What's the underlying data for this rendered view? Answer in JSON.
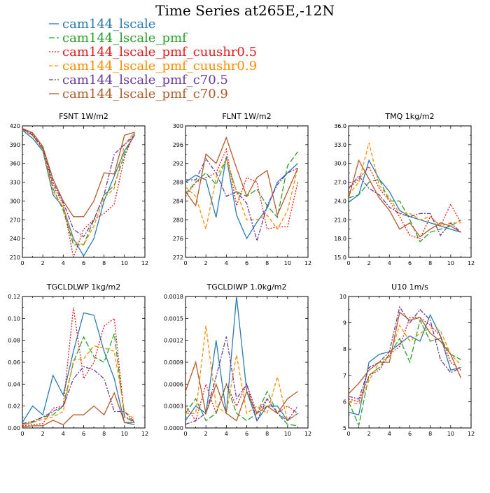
{
  "figure": {
    "title": "Time Series at265E,-12N"
  },
  "legend": [
    {
      "name": "cam144_lscale",
      "color": "#2a7ab5",
      "dash": "solid"
    },
    {
      "name": "cam144_lscale_pmf",
      "color": "#2ca02c",
      "dash": "longdash"
    },
    {
      "name": "cam144_lscale_pmf_cuushr0.5",
      "color": "#e31a1c",
      "dash": "dot"
    },
    {
      "name": "cam144_lscale_pmf_cuushr0.9",
      "color": "#ff8c00",
      "dash": "dash"
    },
    {
      "name": "cam144_lscale_pmf_c70.5",
      "color": "#6a3d9a",
      "dash": "dashdot"
    },
    {
      "name": "cam144_lscale_pmf_c70.9",
      "color": "#b35a2b",
      "dash": "solid"
    }
  ],
  "chart_data": [
    {
      "type": "line",
      "title": "FSNT   1W/m2",
      "xlim": [
        0,
        12
      ],
      "ylim": [
        210,
        420
      ],
      "xticks": [
        "0",
        "2",
        "4",
        "6",
        "8",
        "10",
        "12"
      ],
      "yticks": [
        "210",
        "240",
        "270",
        "300",
        "330",
        "360",
        "390",
        "420"
      ],
      "x": [
        0,
        1,
        2,
        3,
        4,
        5,
        6,
        7,
        8,
        9,
        10,
        11
      ],
      "series": [
        {
          "name": "cam144_lscale",
          "values": [
            413,
            400,
            380,
            310,
            290,
            240,
            212,
            240,
            300,
            340,
            380,
            405
          ]
        },
        {
          "name": "cam144_lscale_pmf",
          "values": [
            415,
            405,
            383,
            320,
            285,
            230,
            230,
            270,
            310,
            325,
            375,
            408
          ]
        },
        {
          "name": "cam144_lscale_pmf_cuushr0.5",
          "values": [
            416,
            407,
            385,
            325,
            295,
            210,
            255,
            270,
            280,
            295,
            370,
            410
          ]
        },
        {
          "name": "cam144_lscale_pmf_cuushr0.9",
          "values": [
            414,
            404,
            382,
            315,
            290,
            235,
            230,
            260,
            305,
            320,
            390,
            410
          ]
        },
        {
          "name": "cam144_lscale_pmf_c70.5",
          "values": [
            415,
            406,
            384,
            330,
            298,
            255,
            243,
            270,
            310,
            375,
            390,
            405
          ]
        },
        {
          "name": "cam144_lscale_pmf_c70.9",
          "values": [
            416,
            409,
            387,
            335,
            300,
            275,
            275,
            300,
            345,
            343,
            405,
            410
          ]
        }
      ]
    },
    {
      "type": "line",
      "title": "FLNT   1W/m2",
      "xlim": [
        0,
        12
      ],
      "ylim": [
        272,
        300
      ],
      "xticks": [
        "0",
        "2",
        "4",
        "6",
        "8",
        "10",
        "12"
      ],
      "yticks": [
        "272",
        "276",
        "280",
        "284",
        "288",
        "292",
        "296",
        "300"
      ],
      "x": [
        0,
        1,
        2,
        3,
        4,
        5,
        6,
        7,
        8,
        9,
        10,
        11
      ],
      "series": [
        {
          "name": "cam144_lscale",
          "values": [
            288,
            289.5,
            288.5,
            280.5,
            293.5,
            281,
            276,
            279.5,
            282.5,
            288,
            290,
            292
          ]
        },
        {
          "name": "cam144_lscale_pmf",
          "values": [
            285.5,
            288,
            290,
            287.5,
            293,
            286,
            285,
            286.5,
            283,
            280.5,
            291.5,
            294.5
          ]
        },
        {
          "name": "cam144_lscale_pmf_cuushr0.5",
          "values": [
            285,
            288,
            289,
            290,
            295,
            283,
            289,
            288,
            278,
            278.5,
            278.5,
            288
          ]
        },
        {
          "name": "cam144_lscale_pmf_cuushr0.9",
          "values": [
            287,
            285,
            278,
            289,
            293,
            286,
            280,
            280,
            281,
            278,
            282,
            291
          ]
        },
        {
          "name": "cam144_lscale_pmf_c70.5",
          "values": [
            288.5,
            288.5,
            293,
            290,
            285,
            286,
            283.5,
            275.5,
            283,
            287.5,
            290,
            291
          ]
        },
        {
          "name": "cam144_lscale_pmf_c70.9",
          "values": [
            286,
            283,
            294,
            292,
            297.5,
            291,
            285,
            289,
            290.5,
            281,
            286,
            291
          ]
        }
      ]
    },
    {
      "type": "line",
      "title": "TMQ   1kg/m2",
      "xlim": [
        0,
        12
      ],
      "ylim": [
        15,
        36
      ],
      "xticks": [
        "0",
        "2",
        "4",
        "6",
        "8",
        "10",
        "12"
      ],
      "yticks": [
        "15.0",
        "18.0",
        "21.0",
        "24.0",
        "27.0",
        "30.0",
        "33.0",
        "36.0"
      ],
      "x": [
        0,
        1,
        2,
        3,
        4,
        5,
        6,
        7,
        8,
        9,
        10,
        11
      ],
      "series": [
        {
          "name": "cam144_lscale",
          "values": [
            23.8,
            25,
            30.5,
            27.5,
            25.5,
            22.5,
            21.5,
            21,
            20.5,
            20,
            19.5,
            19
          ]
        },
        {
          "name": "cam144_lscale_pmf",
          "values": [
            24.5,
            25,
            27,
            27.5,
            24,
            24,
            21,
            17.5,
            19,
            19.5,
            20,
            21
          ]
        },
        {
          "name": "cam144_lscale_pmf_cuushr0.5",
          "values": [
            26,
            27.5,
            29.5,
            26,
            24,
            21.5,
            18.5,
            18,
            21.5,
            20,
            23.5,
            20.5
          ]
        },
        {
          "name": "cam144_lscale_pmf_cuushr0.9",
          "values": [
            25,
            27,
            33.3,
            26.5,
            24.5,
            22,
            22,
            21,
            21.5,
            20,
            20.5,
            20.5
          ]
        },
        {
          "name": "cam144_lscale_pmf_c70.5",
          "values": [
            26,
            28,
            26,
            25,
            23,
            22,
            21.5,
            22,
            22,
            18.5,
            20.5,
            19
          ]
        },
        {
          "name": "cam144_lscale_pmf_c70.9",
          "values": [
            24.5,
            30.5,
            27.5,
            24.5,
            22.5,
            19.5,
            20.5,
            18.3,
            19.5,
            20.5,
            20,
            19
          ]
        }
      ]
    },
    {
      "type": "line",
      "title": "TGCLDLWP   1kg/m2",
      "xlim": [
        0,
        12
      ],
      "ylim": [
        0,
        0.12
      ],
      "xticks": [
        "0",
        "2",
        "4",
        "6",
        "8",
        "10",
        "12"
      ],
      "yticks": [
        "0.00",
        "0.02",
        "0.04",
        "0.06",
        "0.08",
        "0.10",
        "0.12"
      ],
      "x": [
        0,
        1,
        2,
        3,
        4,
        5,
        6,
        7,
        8,
        9,
        10,
        11
      ],
      "series": [
        {
          "name": "cam144_lscale",
          "values": [
            0.005,
            0.02,
            0.012,
            0.048,
            0.03,
            0.07,
            0.105,
            0.103,
            0.07,
            0.045,
            0.005,
            0.003
          ]
        },
        {
          "name": "cam144_lscale_pmf",
          "values": [
            0.003,
            0.005,
            0.01,
            0.012,
            0.02,
            0.06,
            0.083,
            0.065,
            0.06,
            0.086,
            0.01,
            0.005
          ]
        },
        {
          "name": "cam144_lscale_pmf_cuushr0.5",
          "values": [
            0.002,
            0.003,
            0.004,
            0.018,
            0.02,
            0.11,
            0.045,
            0.06,
            0.093,
            0.1,
            0.01,
            0.007
          ]
        },
        {
          "name": "cam144_lscale_pmf_cuushr0.9",
          "values": [
            0.003,
            0.005,
            0.008,
            0.01,
            0.015,
            0.062,
            0.063,
            0.075,
            0.073,
            0.07,
            0.015,
            0.008
          ]
        },
        {
          "name": "cam144_lscale_pmf_c70.5",
          "values": [
            0.004,
            0.006,
            0.01,
            0.015,
            0.02,
            0.045,
            0.056,
            0.053,
            0.045,
            0.015,
            0.015,
            0.005
          ]
        },
        {
          "name": "cam144_lscale_pmf_c70.9",
          "values": [
            0.001,
            0.002,
            0.002,
            0.007,
            0.003,
            0.012,
            0.012,
            0.02,
            0.012,
            0.032,
            0.005,
            0.005
          ]
        }
      ]
    },
    {
      "type": "line",
      "title": "TGCLDIWP   1.0kg/m2",
      "xlim": [
        0,
        12
      ],
      "ylim": [
        0,
        0.0018
      ],
      "xticks": [
        "0",
        "2",
        "4",
        "6",
        "8",
        "10",
        "12"
      ],
      "yticks": [
        "0.0000",
        "0.0003",
        "0.0006",
        "0.0009",
        "0.0012",
        "0.0015",
        "0.0018"
      ],
      "x": [
        0,
        1,
        2,
        3,
        4,
        5,
        6,
        7,
        8,
        9,
        10,
        11
      ],
      "series": [
        {
          "name": "cam144_lscale",
          "values": [
            0.0001,
            0.0003,
            0.0002,
            0.0012,
            0.0002,
            0.0018,
            0.0005,
            0.0001,
            0.0003,
            0.0003,
            0.0001,
            0.0002
          ]
        },
        {
          "name": "cam144_lscale_pmf",
          "values": [
            0.0002,
            0.0004,
            0.0001,
            0.0002,
            0.0006,
            0.0002,
            0.0001,
            0.0002,
            0.0005,
            0.0002,
            5e-05,
            3e-05
          ]
        },
        {
          "name": "cam144_lscale_pmf_cuushr0.5",
          "values": [
            0.0003,
            0.0001,
            0.0006,
            0.0002,
            0.0006,
            0.0003,
            0.0006,
            0.0002,
            0.0004,
            0.0002,
            0.0003,
            0.0002
          ]
        },
        {
          "name": "cam144_lscale_pmf_cuushr0.9",
          "values": [
            0.0002,
            0.0002,
            0.0014,
            0.0003,
            0.0002,
            0.001,
            0.0002,
            0.0003,
            0.0002,
            0.0007,
            0.0001,
            0.0002
          ]
        },
        {
          "name": "cam144_lscale_pmf_c70.5",
          "values": [
            5e-05,
            0.0001,
            0.0002,
            0.0007,
            0.00125,
            0.0004,
            0.0006,
            0.0001,
            0.0004,
            0.0002,
            0.0001,
            0.0003
          ]
        },
        {
          "name": "cam144_lscale_pmf_c70.9",
          "values": [
            0.0005,
            0.0009,
            0.0002,
            0.0006,
            0.0002,
            0.0001,
            0.0005,
            0.0002,
            0.0003,
            0.0002,
            0.0004,
            0.0005
          ]
        }
      ]
    },
    {
      "type": "line",
      "title": "U10   1m/s",
      "xlim": [
        0,
        12
      ],
      "ylim": [
        5,
        10
      ],
      "xticks": [
        "0",
        "2",
        "4",
        "6",
        "8",
        "10",
        "12"
      ],
      "yticks": [
        "5",
        "6",
        "7",
        "8",
        "9",
        "10"
      ],
      "x": [
        0,
        1,
        2,
        3,
        4,
        5,
        6,
        7,
        8,
        9,
        10,
        11
      ],
      "series": [
        {
          "name": "cam144_lscale",
          "values": [
            5.6,
            5.5,
            7.5,
            7.8,
            7.9,
            8.2,
            8.5,
            8.3,
            9.3,
            8.5,
            7.2,
            7.3
          ]
        },
        {
          "name": "cam144_lscale_pmf",
          "values": [
            6,
            5.1,
            7,
            7.3,
            7.8,
            8.4,
            7.5,
            9.1,
            8.3,
            8.4,
            7.8,
            7.6
          ]
        },
        {
          "name": "cam144_lscale_pmf_cuushr0.5",
          "values": [
            6.1,
            6,
            7,
            7.2,
            7.8,
            8.1,
            9.2,
            9.2,
            8.9,
            8.5,
            7.5,
            7.2
          ]
        },
        {
          "name": "cam144_lscale_pmf_cuushr0.9",
          "values": [
            6,
            5.9,
            6.8,
            7.5,
            7.7,
            8.9,
            8.3,
            8.6,
            8.8,
            8.7,
            7.8,
            7.4
          ]
        },
        {
          "name": "cam144_lscale_pmf_c70.5",
          "values": [
            6.2,
            6.1,
            7.3,
            7.5,
            7.9,
            9.6,
            9,
            9.5,
            9.1,
            7.6,
            7.1,
            7.3
          ]
        },
        {
          "name": "cam144_lscale_pmf_c70.9",
          "values": [
            6.3,
            6.7,
            7.2,
            7.5,
            7.5,
            9.4,
            9.1,
            9.2,
            8.6,
            8.3,
            7.8,
            6.9
          ]
        }
      ]
    }
  ]
}
